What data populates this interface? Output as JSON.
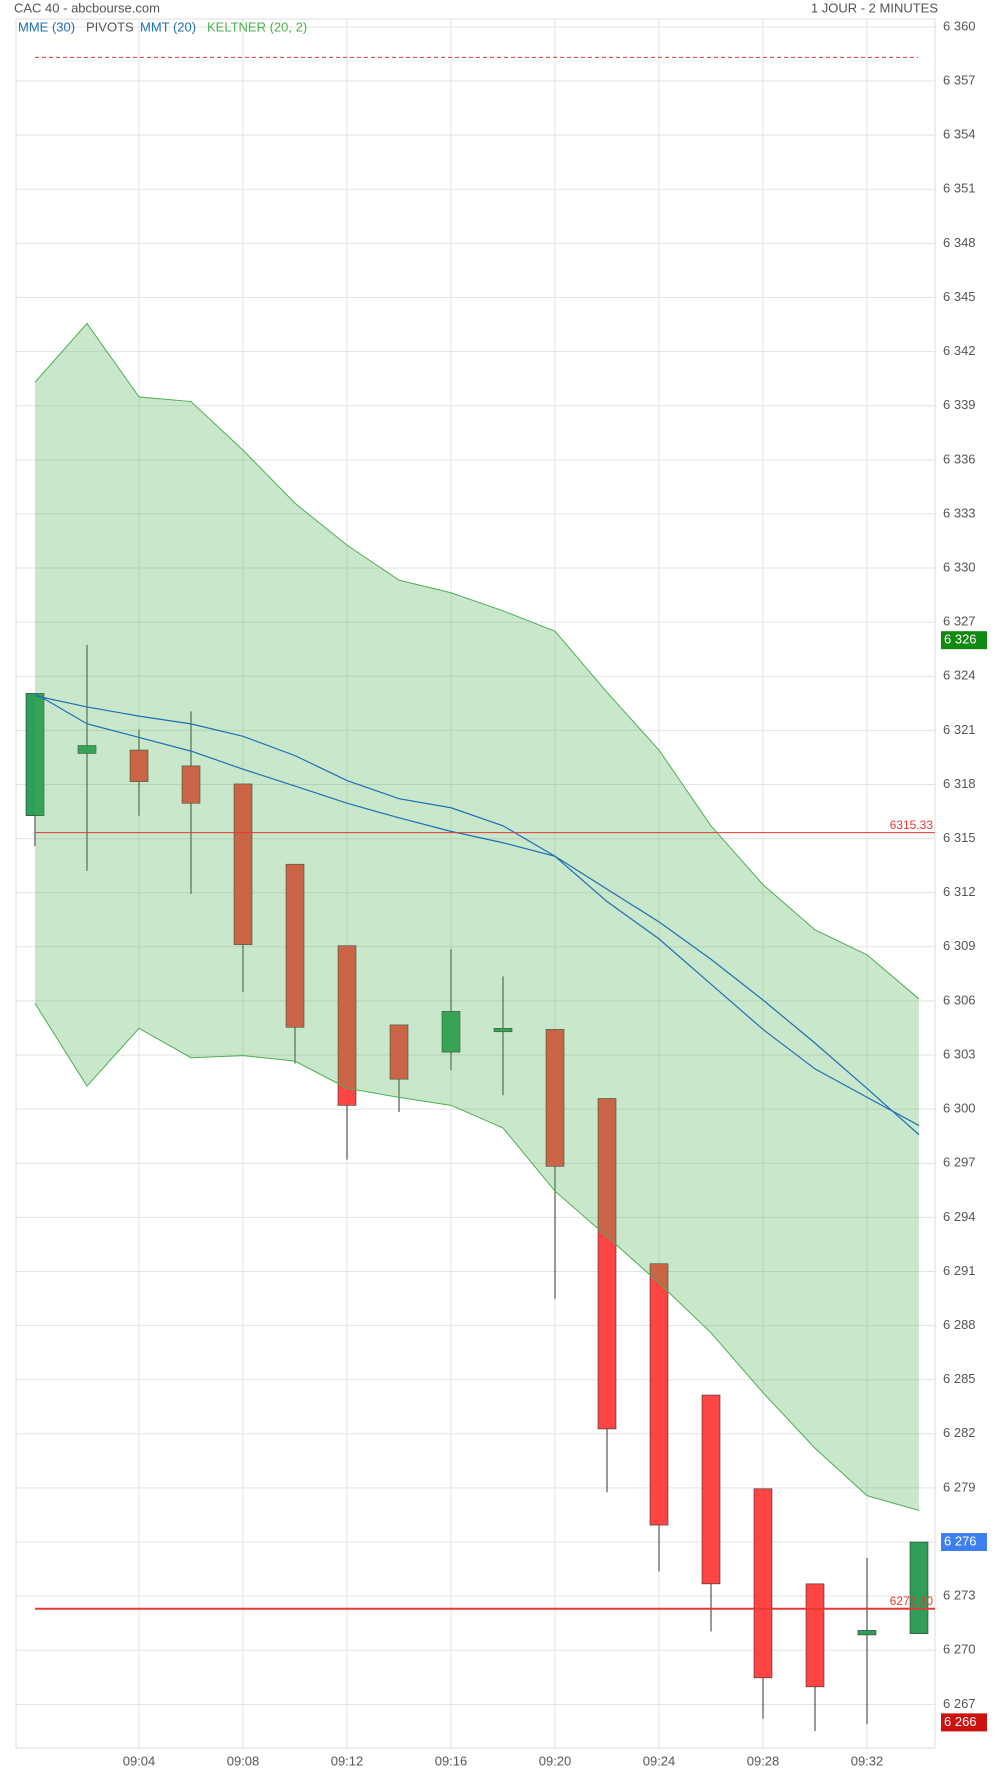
{
  "chart_data": {
    "type": "candlestick",
    "title": "CAC 40 - abcbourse.com",
    "subtitle": "1 JOUR - 2 MINUTES",
    "categories": [
      null,
      null,
      "09:04",
      null,
      "09:08",
      null,
      "09:12",
      null,
      "09:16",
      null,
      "09:20",
      null,
      "09:24",
      null,
      "09:28",
      null,
      "09:32",
      null
    ],
    "open": [
      6316.27,
      6319.72,
      6319.91,
      6319.03,
      6318.03,
      6313.58,
      6309.06,
      6304.67,
      6303.16,
      6304.29,
      6304.42,
      6300.59,
      6291.43,
      6284.15,
      6278.95,
      6273.68,
      6270.85,
      6270.92
    ],
    "high": [
      6323.05,
      6325.75,
      6321.04,
      6322.05,
      6318.03,
      6313.58,
      6309.06,
      6304.67,
      6308.87,
      6307.36,
      6304.42,
      6300.59,
      6291.43,
      6284.15,
      6278.95,
      6273.68,
      6275.12,
      6276.0
    ],
    "low": [
      6314.58,
      6313.2,
      6316.27,
      6311.94,
      6306.49,
      6302.53,
      6297.2,
      6299.84,
      6302.16,
      6300.78,
      6289.49,
      6278.76,
      6274.37,
      6271.04,
      6266.21,
      6265.52,
      6265.9,
      6270.92
    ],
    "close": [
      6323.05,
      6320.16,
      6318.16,
      6316.96,
      6309.12,
      6304.54,
      6300.21,
      6301.66,
      6305.42,
      6304.48,
      6296.83,
      6282.27,
      6276.94,
      6273.68,
      6268.47,
      6267.97,
      6271.1,
      6276.0
    ],
    "up_color": "#2e9e5a",
    "down_color": "#ff4444",
    "overlays": [
      {
        "name": "MME (30)",
        "color": "#1f6fb5",
        "values": [
          6322.92,
          6322.3,
          6321.79,
          6321.36,
          6320.67,
          6319.6,
          6318.22,
          6317.21,
          6316.71,
          6315.71,
          6314.02,
          6312.2,
          6310.38,
          6308.31,
          6306.05,
          6303.66,
          6301.15,
          6298.58
        ]
      },
      {
        "name": "MMT (20)",
        "color": "#1f6fb5",
        "values": [
          6323.05,
          6321.36,
          6320.61,
          6319.85,
          6318.85,
          6317.91,
          6316.96,
          6316.15,
          6315.4,
          6314.77,
          6314.02,
          6311.51,
          6309.44,
          6306.93,
          6304.42,
          6302.23,
          6300.66,
          6299.09
        ]
      }
    ],
    "keltner": {
      "name": "KELTNER (20, 2)",
      "color": "#4caf50",
      "upper": [
        6340.3,
        6343.56,
        6339.49,
        6339.23,
        6336.54,
        6333.59,
        6331.27,
        6329.33,
        6328.63,
        6327.63,
        6326.5,
        6323.11,
        6319.91,
        6315.71,
        6312.45,
        6309.94,
        6308.56,
        6306.11
      ],
      "lower": [
        6305.86,
        6301.28,
        6304.48,
        6302.85,
        6302.97,
        6302.66,
        6301.16,
        6300.65,
        6300.21,
        6298.96,
        6295.45,
        6292.94,
        6290.36,
        6287.6,
        6284.28,
        6281.2,
        6278.57,
        6277.75
      ]
    },
    "pivots": {
      "name": "PIVOTS",
      "color": "#555555",
      "lines": [
        {
          "value": 6358.31,
          "style": "dashed",
          "color": "#e53935"
        },
        {
          "value": 6315.33,
          "label": "6315.33",
          "style": "thin",
          "color": "#e53935"
        },
        {
          "value": 6272.3,
          "label": "6272.30",
          "style": "bold",
          "color": "#e53935"
        }
      ]
    },
    "price_markers": [
      {
        "value": 6326,
        "label": "6 326",
        "color": "#118811"
      },
      {
        "value": 6276,
        "label": "6 276",
        "color": "#3d7ff0"
      },
      {
        "value": 6266,
        "label": "6 266",
        "color": "#cc1111"
      }
    ],
    "ylim": [
      6264.58,
      6360.44
    ],
    "yticks": [
      {
        "value": 6267,
        "label": "6 267"
      },
      {
        "value": 6270,
        "label": "6 270"
      },
      {
        "value": 6273,
        "label": "6 273"
      },
      {
        "value": 6276,
        "label": "6 276"
      },
      {
        "value": 6279,
        "label": "6 279"
      },
      {
        "value": 6282,
        "label": "6 282"
      },
      {
        "value": 6285,
        "label": "6 285"
      },
      {
        "value": 6288,
        "label": "6 288"
      },
      {
        "value": 6291,
        "label": "6 291"
      },
      {
        "value": 6294,
        "label": "6 294"
      },
      {
        "value": 6297,
        "label": "6 297"
      },
      {
        "value": 6300,
        "label": "6 300"
      },
      {
        "value": 6303,
        "label": "6 303"
      },
      {
        "value": 6306,
        "label": "6 306"
      },
      {
        "value": 6309,
        "label": "6 309"
      },
      {
        "value": 6312,
        "label": "6 312"
      },
      {
        "value": 6315,
        "label": "6 315"
      },
      {
        "value": 6318,
        "label": "6 318"
      },
      {
        "value": 6321,
        "label": "6 321"
      },
      {
        "value": 6324,
        "label": "6 324"
      },
      {
        "value": 6327,
        "label": "6 327"
      },
      {
        "value": 6330,
        "label": "6 330"
      },
      {
        "value": 6333,
        "label": "6 333"
      },
      {
        "value": 6336,
        "label": "6 336"
      },
      {
        "value": 6339,
        "label": "6 339"
      },
      {
        "value": 6342,
        "label": "6 342"
      },
      {
        "value": 6345,
        "label": "6 345"
      },
      {
        "value": 6348,
        "label": "6 348"
      },
      {
        "value": 6351,
        "label": "6 351"
      },
      {
        "value": 6354,
        "label": "6 354"
      },
      {
        "value": 6357,
        "label": "6 357"
      },
      {
        "value": 6360,
        "label": "6 360"
      }
    ],
    "grid": true
  }
}
